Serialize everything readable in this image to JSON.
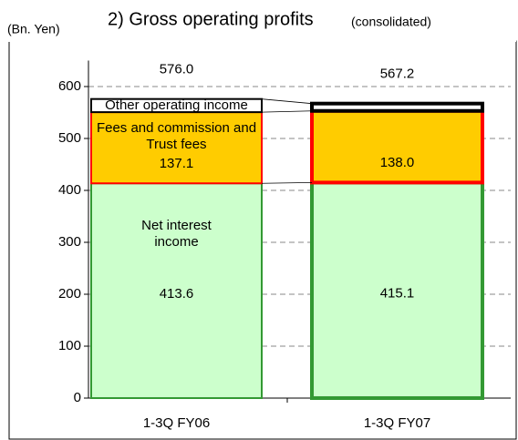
{
  "chart_data": {
    "type": "stacked_bar",
    "title": "2) Gross operating profits",
    "subtitle": "(consolidated)",
    "y_axis_label": "(Bn. Yen)",
    "categories": [
      "1-3Q FY06",
      "1-3Q FY07"
    ],
    "series": [
      {
        "name": "Net interest income",
        "color": "#ccffcc",
        "border": "#339933",
        "values": [
          413.6,
          415.1
        ],
        "value_labels": [
          "413.6",
          "415.1"
        ]
      },
      {
        "name": "Fees and commission and Trust fees",
        "color": "#ffcc00",
        "border": "#ff0000",
        "values": [
          137.1,
          138.0
        ],
        "value_labels": [
          "137.1",
          "138.0"
        ]
      },
      {
        "name": "Other operating income",
        "color": "#ffffff",
        "border": "#000000",
        "values": [
          25.3,
          14.1
        ]
      }
    ],
    "totals": [
      576.0,
      567.2
    ],
    "total_labels": [
      "576.0",
      "567.2"
    ],
    "ylim": [
      0,
      650
    ],
    "yticks": [
      0,
      100,
      200,
      300,
      400,
      500,
      600
    ],
    "grid": true
  }
}
